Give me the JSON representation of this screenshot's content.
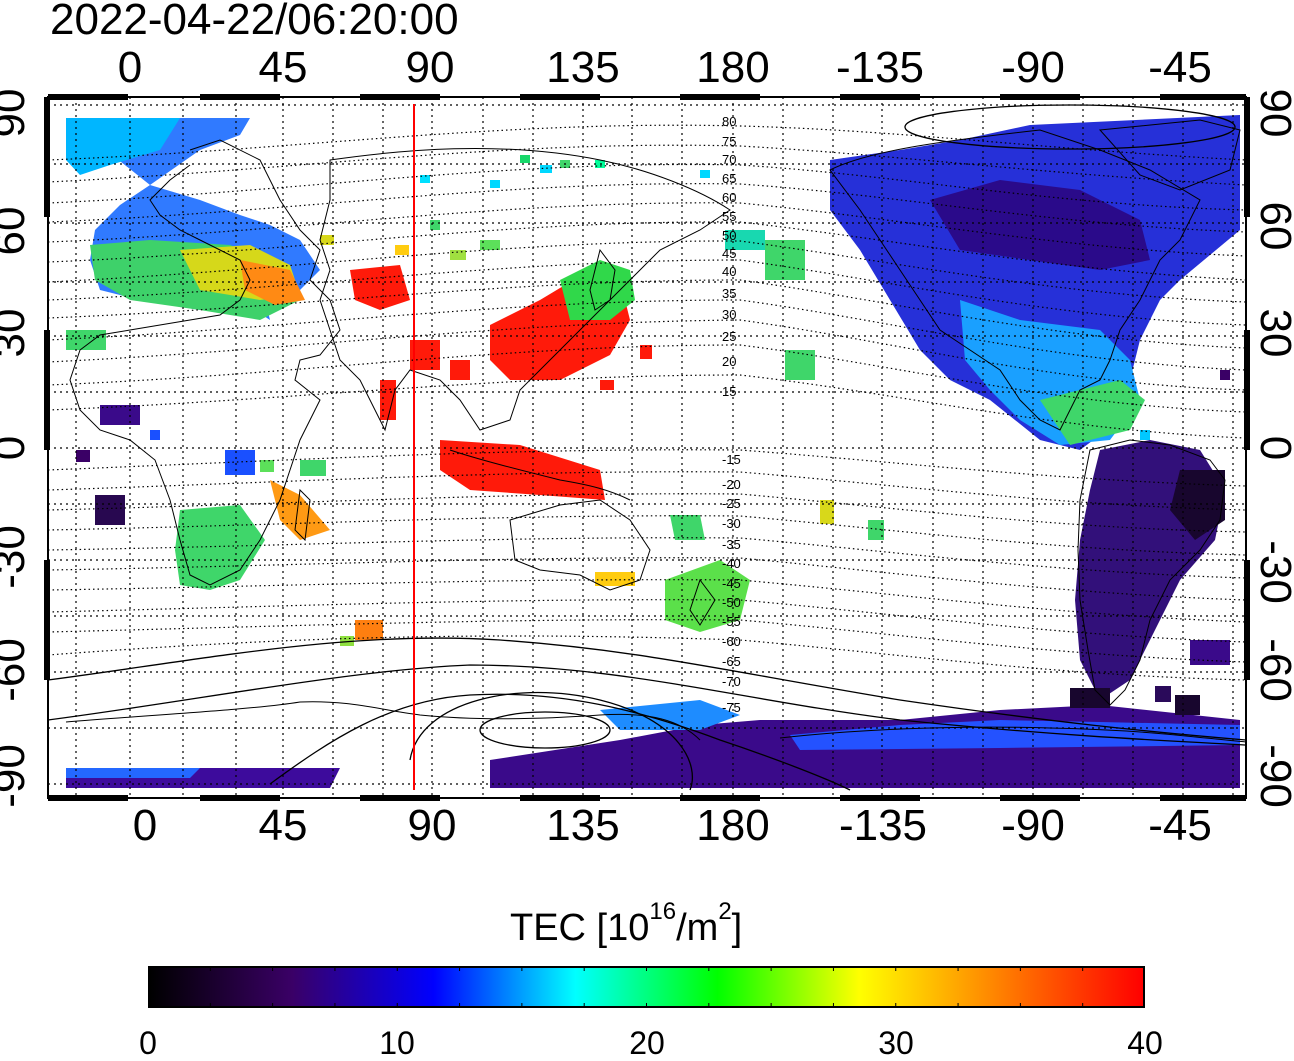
{
  "timestamp": "2022-04-22/06:20:00",
  "map": {
    "top_lon_ticks": [
      "0",
      "45",
      "90",
      "135",
      "180",
      "-135",
      "-90",
      "-45"
    ],
    "bottom_lon_ticks": [
      "0",
      "45",
      "90",
      "135",
      "180",
      "-135",
      "-90",
      "-45"
    ],
    "left_lat_ticks": [
      "90",
      "60",
      "30",
      "0",
      "-30",
      "-60",
      "-90"
    ],
    "right_lat_ticks": [
      "90",
      "60",
      "30",
      "0",
      "-30",
      "-60",
      "-90"
    ],
    "contour_labels": [
      "80",
      "75",
      "70",
      "65",
      "60",
      "55",
      "50",
      "45",
      "40",
      "35",
      "30",
      "25",
      "20",
      "15",
      "-15",
      "-20",
      "-25",
      "-30",
      "-35",
      "-40",
      "-45",
      "-50",
      "-55",
      "-60",
      "-65",
      "-70",
      "-75"
    ],
    "terminator_color": "#ff0000",
    "grid": true
  },
  "colorbar": {
    "title_prefix": "TEC  [10",
    "title_exp1": "16",
    "title_mid": "/m",
    "title_exp2": "2",
    "title_suffix": "]",
    "ticks": [
      "0",
      "10",
      "20",
      "30",
      "40"
    ],
    "range": [
      0,
      40
    ],
    "colors": [
      "#000000",
      "#3a0066",
      "#0000ff",
      "#00ffff",
      "#00ff00",
      "#ffff00",
      "#ff7f00",
      "#ff0000"
    ]
  }
}
